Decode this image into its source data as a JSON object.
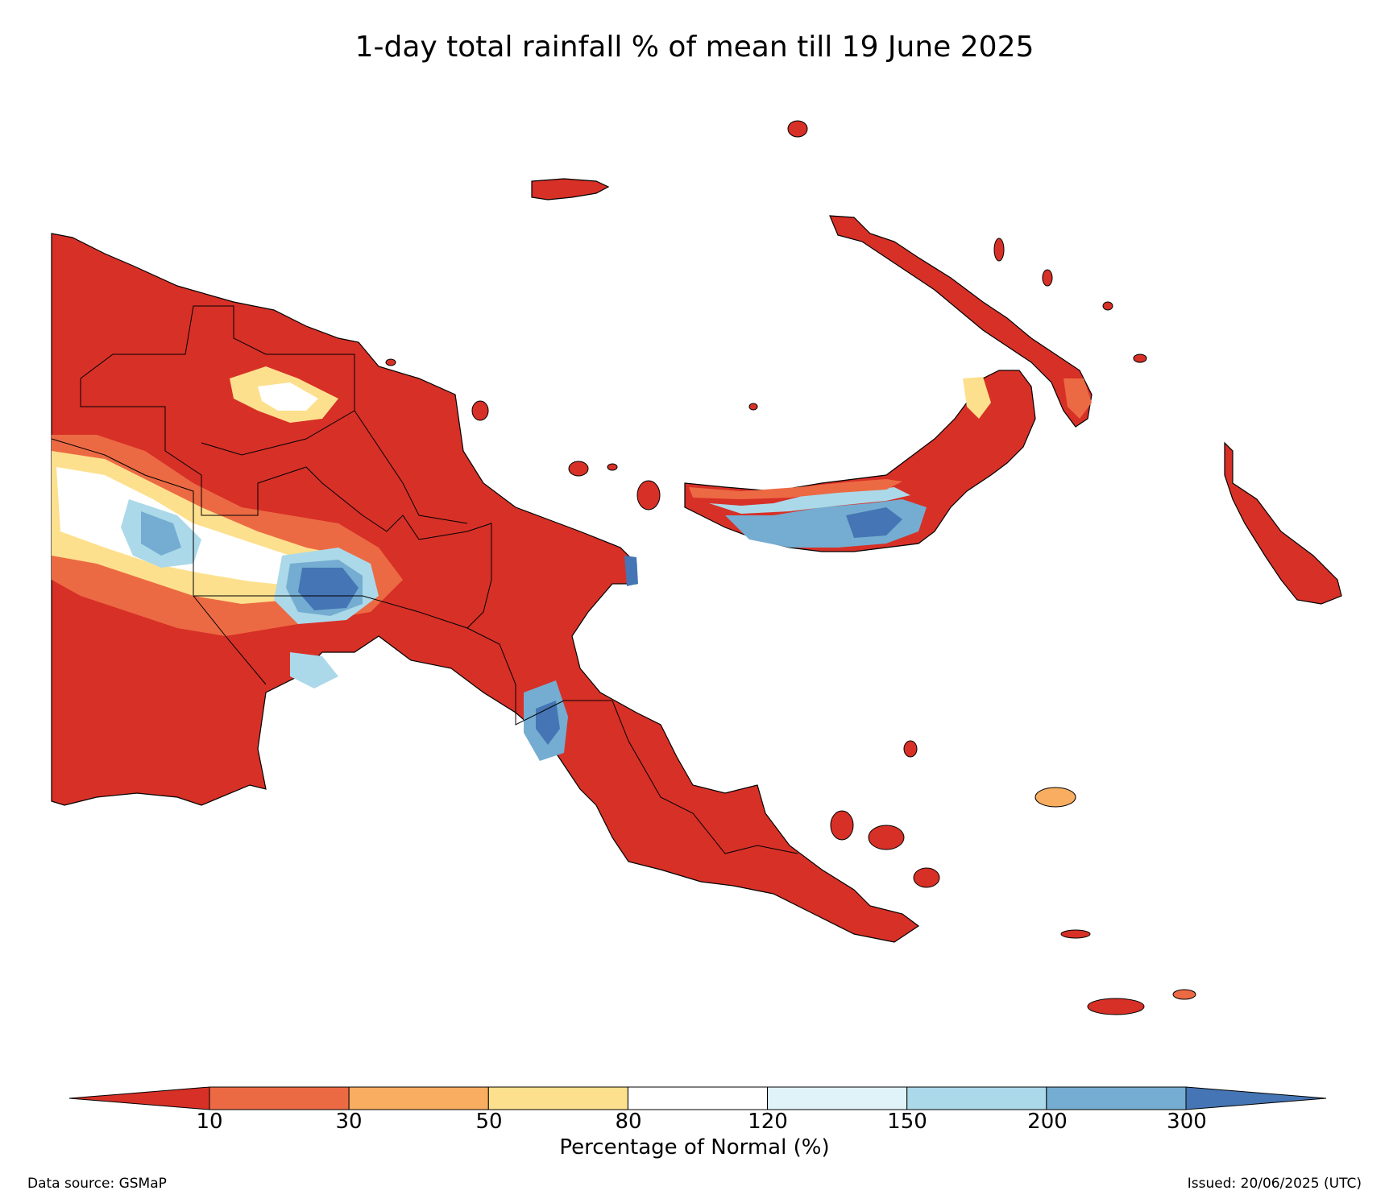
{
  "title": "1-day total rainfall % of mean till 19 June 2025",
  "legend": {
    "label": "Percentage of Normal (%)",
    "ticks": [
      "10",
      "30",
      "50",
      "80",
      "120",
      "150",
      "200",
      "300"
    ],
    "colors": [
      "#d73027",
      "#ec6a43",
      "#f9ad60",
      "#fde08e",
      "#ffffff",
      "#e0f3f8",
      "#abd9e9",
      "#74add1",
      "#4575b4"
    ],
    "extend": "both"
  },
  "footer": {
    "source": "Data source: GSMaP",
    "issued": "Issued: 20/06/2025 (UTC)"
  }
}
